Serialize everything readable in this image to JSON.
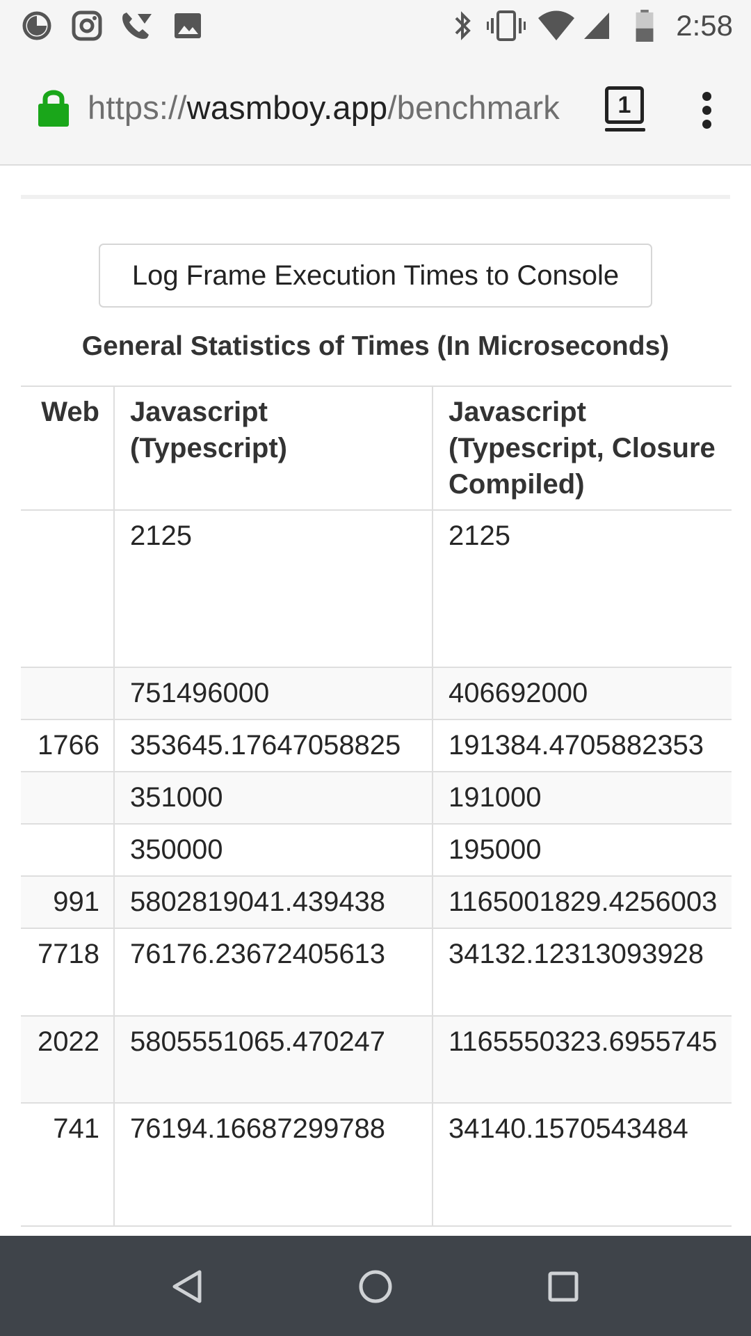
{
  "status_bar": {
    "time": "2:58",
    "icons": [
      "data-saver-icon",
      "instagram-icon",
      "wifi-calling-icon",
      "image-icon",
      "bluetooth-icon",
      "vibrate-icon",
      "wifi-icon",
      "cell-signal-icon",
      "battery-icon"
    ]
  },
  "browser": {
    "url_scheme": "https://",
    "url_domain": "wasmboy.app",
    "url_path": "/benchmark",
    "tab_count": "1",
    "lock_color": "#1aa61a"
  },
  "page": {
    "log_button_label": "Log Frame Execution Times to Console",
    "heading": "General Statistics of Times (In Microseconds)",
    "table": {
      "headers": [
        "Web",
        "Javascript (Typescript)",
        "Javascript (Typescript, Closure Compiled)"
      ],
      "rows": [
        [
          "",
          "2125",
          "2125"
        ],
        [
          "",
          "751496000",
          "406692000"
        ],
        [
          "1766",
          "353645.17647058825",
          "191384.4705882353"
        ],
        [
          "",
          "351000",
          "191000"
        ],
        [
          "",
          "350000",
          "195000"
        ],
        [
          "991",
          "5802819041.439438",
          "1165001829.4256003"
        ],
        [
          "7718",
          "76176.23672405613",
          "34132.12313093928"
        ],
        [
          "2022",
          "5805551065.470247",
          "1165550323.6955745"
        ],
        [
          "741",
          "76194.16687299788",
          "34140.1570543484"
        ]
      ]
    }
  },
  "nav_bar": {
    "buttons": [
      "back-icon",
      "home-icon",
      "recents-icon"
    ]
  }
}
